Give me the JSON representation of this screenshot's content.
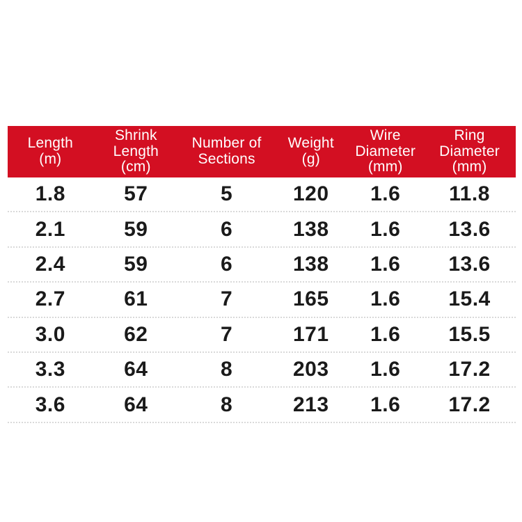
{
  "colors": {
    "background": "#ffffff",
    "header_bg": "#d30f22",
    "header_text": "#ffffff",
    "cell_text": "#1a1a1a",
    "separator": "#d9d9d9"
  },
  "table": {
    "columns": [
      "Length\n(m)",
      "Shrink\nLength\n(cm)",
      "Number of\nSections",
      "Weight\n(g)",
      "Wire\nDiameter\n(mm)",
      "Ring\nDiameter\n(mm)"
    ],
    "rows": [
      [
        "1.8",
        "57",
        "5",
        "120",
        "1.6",
        "11.8"
      ],
      [
        "2.1",
        "59",
        "6",
        "138",
        "1.6",
        "13.6"
      ],
      [
        "2.4",
        "59",
        "6",
        "138",
        "1.6",
        "13.6"
      ],
      [
        "2.7",
        "61",
        "7",
        "165",
        "1.6",
        "15.4"
      ],
      [
        "3.0",
        "62",
        "7",
        "171",
        "1.6",
        "15.5"
      ],
      [
        "3.3",
        "64",
        "8",
        "203",
        "1.6",
        "17.2"
      ],
      [
        "3.6",
        "64",
        "8",
        "213",
        "1.6",
        "17.2"
      ]
    ]
  },
  "chart_data": {
    "type": "table",
    "title": "",
    "columns": [
      "Length (m)",
      "Shrink Length (cm)",
      "Number of Sections",
      "Weight (g)",
      "Wire Diameter (mm)",
      "Ring Diameter (mm)"
    ],
    "rows": [
      [
        1.8,
        57,
        5,
        120,
        1.6,
        11.8
      ],
      [
        2.1,
        59,
        6,
        138,
        1.6,
        13.6
      ],
      [
        2.4,
        59,
        6,
        138,
        1.6,
        13.6
      ],
      [
        2.7,
        61,
        7,
        165,
        1.6,
        15.4
      ],
      [
        3.0,
        62,
        7,
        171,
        1.6,
        15.5
      ],
      [
        3.3,
        64,
        8,
        203,
        1.6,
        17.2
      ],
      [
        3.6,
        64,
        8,
        213,
        1.6,
        17.2
      ]
    ]
  }
}
